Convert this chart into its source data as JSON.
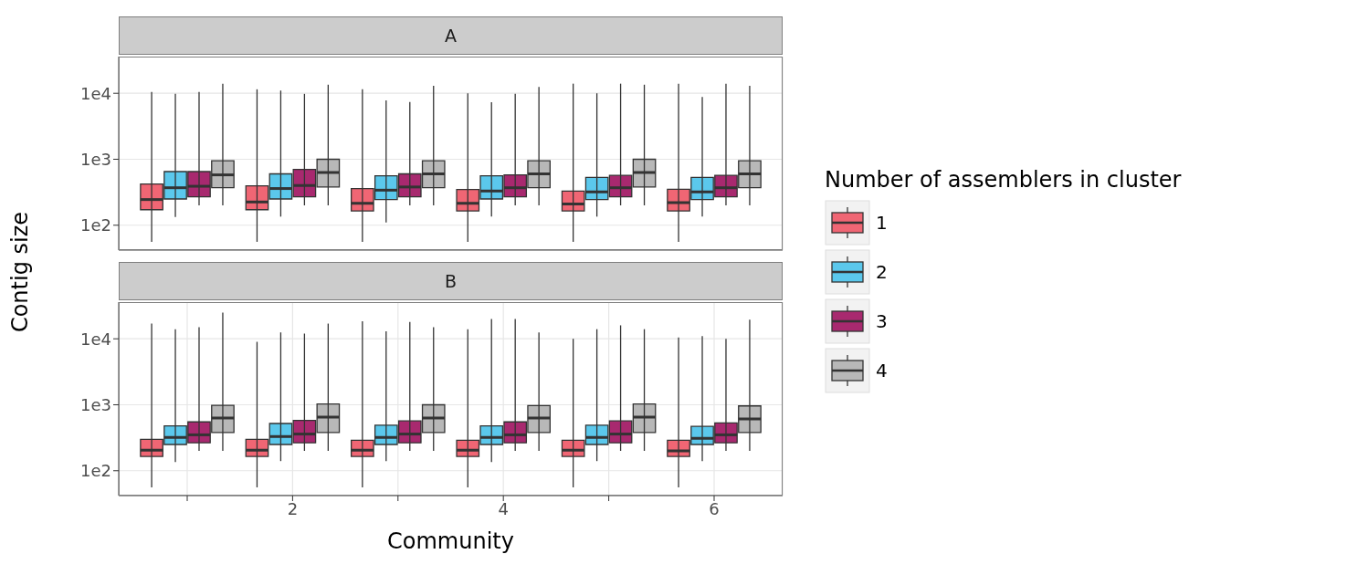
{
  "chart_data": [
    {
      "type": "box",
      "title": "A",
      "ylabel": "Contig size",
      "legend_title": "Number of assemblers in cluster",
      "legend": "right",
      "log": true,
      "grid": true,
      "tick_labels": "y",
      "categories": [
        null,
        "2",
        null,
        "4",
        null,
        "6"
      ],
      "ylim": [
        42,
        36000
      ],
      "yticks": [
        {
          "value": 100,
          "label": "1e2"
        },
        {
          "value": 1000,
          "label": "1e3"
        },
        {
          "value": 10000,
          "label": "1e4"
        }
      ],
      "series": [
        {
          "name": "1",
          "color": "#f06674",
          "boxes": [
            {
              "low": 56,
              "q1": 172,
              "median": 245,
              "q3": 420,
              "high": 10500
            },
            {
              "low": 56,
              "q1": 172,
              "median": 225,
              "q3": 395,
              "high": 11500
            },
            {
              "low": 56,
              "q1": 165,
              "median": 215,
              "q3": 360,
              "high": 11500
            },
            {
              "low": 56,
              "q1": 165,
              "median": 215,
              "q3": 348,
              "high": 10000
            },
            {
              "low": 56,
              "q1": 165,
              "median": 210,
              "q3": 330,
              "high": 14000
            },
            {
              "low": 56,
              "q1": 165,
              "median": 220,
              "q3": 350,
              "high": 14000
            }
          ]
        },
        {
          "name": "2",
          "color": "#5bc8ec",
          "boxes": [
            {
              "low": 133,
              "q1": 250,
              "median": 370,
              "q3": 650,
              "high": 9800
            },
            {
              "low": 135,
              "q1": 250,
              "median": 360,
              "q3": 600,
              "high": 11000
            },
            {
              "low": 110,
              "q1": 245,
              "median": 340,
              "q3": 560,
              "high": 7800
            },
            {
              "low": 135,
              "q1": 250,
              "median": 330,
              "q3": 560,
              "high": 7300
            },
            {
              "low": 135,
              "q1": 245,
              "median": 320,
              "q3": 530,
              "high": 10000
            },
            {
              "low": 135,
              "q1": 245,
              "median": 320,
              "q3": 530,
              "high": 8800
            }
          ]
        },
        {
          "name": "3",
          "color": "#a8296f",
          "boxes": [
            {
              "low": 200,
              "q1": 270,
              "median": 390,
              "q3": 650,
              "high": 10500
            },
            {
              "low": 200,
              "q1": 270,
              "median": 400,
              "q3": 700,
              "high": 9800
            },
            {
              "low": 200,
              "q1": 270,
              "median": 380,
              "q3": 600,
              "high": 7400
            },
            {
              "low": 200,
              "q1": 270,
              "median": 370,
              "q3": 580,
              "high": 9800
            },
            {
              "low": 200,
              "q1": 270,
              "median": 370,
              "q3": 570,
              "high": 14000
            },
            {
              "low": 200,
              "q1": 270,
              "median": 370,
              "q3": 570,
              "high": 14000
            }
          ]
        },
        {
          "name": "4",
          "color": "#b8b8b8",
          "boxes": [
            {
              "low": 200,
              "q1": 370,
              "median": 580,
              "q3": 950,
              "high": 14000
            },
            {
              "low": 200,
              "q1": 380,
              "median": 630,
              "q3": 1000,
              "high": 13500
            },
            {
              "low": 200,
              "q1": 370,
              "median": 600,
              "q3": 950,
              "high": 13000
            },
            {
              "low": 200,
              "q1": 370,
              "median": 600,
              "q3": 950,
              "high": 12500
            },
            {
              "low": 200,
              "q1": 380,
              "median": 630,
              "q3": 1000,
              "high": 13500
            },
            {
              "low": 200,
              "q1": 370,
              "median": 600,
              "q3": 950,
              "high": 13000
            }
          ]
        }
      ]
    },
    {
      "type": "box",
      "title": "B",
      "xlabel": "Community",
      "log": true,
      "grid": true,
      "categories": [
        null,
        "2",
        null,
        "4",
        null,
        "6"
      ],
      "ylim": [
        42,
        36000
      ],
      "yticks": [
        {
          "value": 100,
          "label": "1e2"
        },
        {
          "value": 1000,
          "label": "1e3"
        },
        {
          "value": 10000,
          "label": "1e4"
        }
      ],
      "series": [
        {
          "color": "#f06674",
          "boxes": [
            {
              "low": 56,
              "q1": 165,
              "median": 205,
              "q3": 300,
              "high": 17000
            },
            {
              "low": 56,
              "q1": 165,
              "median": 205,
              "q3": 300,
              "high": 9000
            },
            {
              "low": 56,
              "q1": 165,
              "median": 205,
              "q3": 290,
              "high": 18500
            },
            {
              "low": 56,
              "q1": 165,
              "median": 205,
              "q3": 290,
              "high": 14000
            },
            {
              "low": 56,
              "q1": 165,
              "median": 205,
              "q3": 290,
              "high": 10000
            },
            {
              "low": 56,
              "q1": 165,
              "median": 200,
              "q3": 290,
              "high": 10500
            }
          ]
        },
        {
          "color": "#5bc8ec",
          "boxes": [
            {
              "low": 135,
              "q1": 250,
              "median": 320,
              "q3": 480,
              "high": 14000
            },
            {
              "low": 140,
              "q1": 250,
              "median": 330,
              "q3": 520,
              "high": 12500
            },
            {
              "low": 140,
              "q1": 250,
              "median": 320,
              "q3": 490,
              "high": 13000
            },
            {
              "low": 135,
              "q1": 250,
              "median": 320,
              "q3": 480,
              "high": 20000
            },
            {
              "low": 140,
              "q1": 250,
              "median": 320,
              "q3": 490,
              "high": 14000
            },
            {
              "low": 140,
              "q1": 250,
              "median": 310,
              "q3": 470,
              "high": 11000
            }
          ]
        },
        {
          "color": "#a8296f",
          "boxes": [
            {
              "low": 200,
              "q1": 265,
              "median": 350,
              "q3": 550,
              "high": 15000
            },
            {
              "low": 200,
              "q1": 265,
              "median": 360,
              "q3": 580,
              "high": 12000
            },
            {
              "low": 200,
              "q1": 265,
              "median": 360,
              "q3": 570,
              "high": 18000
            },
            {
              "low": 200,
              "q1": 265,
              "median": 350,
              "q3": 550,
              "high": 20000
            },
            {
              "low": 200,
              "q1": 265,
              "median": 360,
              "q3": 570,
              "high": 16000
            },
            {
              "low": 200,
              "q1": 265,
              "median": 350,
              "q3": 530,
              "high": 10000
            }
          ]
        },
        {
          "color": "#b8b8b8",
          "boxes": [
            {
              "low": 200,
              "q1": 380,
              "median": 630,
              "q3": 980,
              "high": 25000
            },
            {
              "low": 200,
              "q1": 380,
              "median": 650,
              "q3": 1030,
              "high": 17000
            },
            {
              "low": 200,
              "q1": 380,
              "median": 630,
              "q3": 1000,
              "high": 15000
            },
            {
              "low": 200,
              "q1": 380,
              "median": 630,
              "q3": 970,
              "high": 12500
            },
            {
              "low": 200,
              "q1": 380,
              "median": 650,
              "q3": 1030,
              "high": 14000
            },
            {
              "low": 200,
              "q1": 380,
              "median": 610,
              "q3": 960,
              "high": 19500
            }
          ]
        }
      ]
    }
  ]
}
